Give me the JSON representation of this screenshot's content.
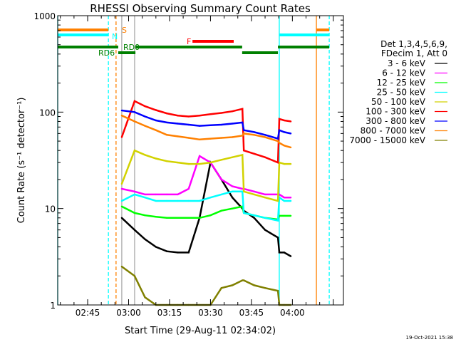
{
  "chart_data": {
    "type": "line",
    "title": "RHESSI Observing Summary Count Rates",
    "xlabel": "Start Time (29-Aug-11 02:34:02)",
    "ylabel": "Count Rate (s⁻¹ detector⁻¹)",
    "x_units": "minutes after 02:30 UT",
    "xlim": [
      4.03,
      108.7
    ],
    "ylim": [
      1,
      1000
    ],
    "yscale": "log",
    "x_ticks": [
      {
        "v": 15,
        "label": "02:45"
      },
      {
        "v": 30,
        "label": "03:00"
      },
      {
        "v": 45,
        "label": "03:15"
      },
      {
        "v": 60,
        "label": "03:30"
      },
      {
        "v": 75,
        "label": "03:45"
      },
      {
        "v": 90,
        "label": "04:00"
      }
    ],
    "y_ticks": [
      {
        "v": 1,
        "label": "1"
      },
      {
        "v": 10,
        "label": "10"
      },
      {
        "v": 100,
        "label": "100"
      },
      {
        "v": 1000,
        "label": "1000"
      }
    ],
    "legend_header": [
      "Det 1,3,4,5,6,9,",
      "FDecim 1, Att 0"
    ],
    "legend_position": "right",
    "x": [
      27.5,
      32.2,
      36,
      40,
      44,
      48,
      52,
      56,
      60,
      64,
      68,
      71.7,
      72.2,
      76,
      80,
      84.7,
      85.2,
      87,
      89.4
    ],
    "series": [
      {
        "name": "3 - 6 keV",
        "color": "#000000",
        "values": [
          8,
          6,
          4.8,
          4,
          3.6,
          3.5,
          3.5,
          8,
          30,
          20,
          13,
          10,
          9.5,
          8,
          6,
          5,
          3.5,
          3.5,
          3.2
        ]
      },
      {
        "name": "6 - 12 keV",
        "color": "#ff00ff",
        "values": [
          16,
          15,
          14,
          14,
          14,
          14,
          16,
          35,
          30,
          20,
          17,
          16,
          16,
          15,
          14,
          14,
          14,
          13,
          13
        ]
      },
      {
        "name": "12 - 25 keV",
        "color": "#00ff00",
        "values": [
          10.5,
          9,
          8.5,
          8.2,
          8,
          8,
          8,
          8,
          8.5,
          9.5,
          10,
          10.5,
          9,
          8.5,
          8,
          7.7,
          8.4,
          8.4,
          8.4
        ]
      },
      {
        "name": "25 - 50 keV",
        "color": "#00ffff",
        "values": [
          12,
          14,
          13,
          12,
          12,
          12,
          12,
          12,
          13,
          14,
          15,
          15,
          9,
          8.5,
          8,
          7.5,
          13,
          12,
          12
        ]
      },
      {
        "name": "50 - 100 keV",
        "color": "#d2d200",
        "values": [
          18,
          40,
          36,
          33,
          31,
          30,
          29,
          29,
          30,
          32,
          34,
          36,
          15,
          14,
          13,
          12,
          30,
          29,
          29
        ]
      },
      {
        "name": "100 - 300 keV",
        "color": "#ff0000",
        "values": [
          55,
          130,
          115,
          105,
          97,
          92,
          90,
          92,
          95,
          98,
          102,
          108,
          40,
          37,
          34,
          30,
          85,
          82,
          80
        ]
      },
      {
        "name": "300 - 800 keV",
        "color": "#0000ff",
        "values": [
          104,
          100,
          90,
          82,
          78,
          76,
          74,
          72,
          73,
          74,
          76,
          78,
          65,
          62,
          58,
          53,
          65,
          62,
          60
        ]
      },
      {
        "name": "800 - 7000 keV",
        "color": "#ff8000",
        "values": [
          92,
          80,
          72,
          65,
          58,
          56,
          54,
          52,
          53,
          54,
          55,
          57,
          60,
          58,
          55,
          50,
          48,
          45,
          43
        ]
      },
      {
        "name": "7000 - 15000 keV",
        "color": "#808000",
        "values": [
          2.5,
          2,
          1.2,
          1,
          1,
          1,
          1,
          1,
          1,
          1.5,
          1.6,
          1.8,
          1.8,
          1.6,
          1.5,
          1.4,
          1,
          1,
          1
        ]
      }
    ],
    "flags": [
      {
        "label": "S",
        "color": "#ff8000",
        "row": 0,
        "spans": [
          [
            4.03,
            22.6
          ],
          [
            98.8,
            103.5
          ]
        ]
      },
      {
        "label": "N",
        "color": "#00ffff",
        "row": 1,
        "spans": [
          [
            4.03,
            22.6
          ],
          [
            85.2,
            103.5
          ]
        ]
      },
      {
        "label": "F",
        "color": "#ff0000",
        "row": 2,
        "spans": [
          [
            53.4,
            68.5
          ]
        ]
      },
      {
        "label": "RD0",
        "color": "#008000",
        "row": 3,
        "spans": [
          [
            4.03,
            26.2
          ],
          [
            32.5,
            71.6
          ],
          [
            84.7,
            103.5
          ]
        ]
      },
      {
        "label": "RD6",
        "color": "#008000",
        "row": 4,
        "spans": [
          [
            26.2,
            32.5
          ],
          [
            71.6,
            84.7
          ]
        ]
      }
    ],
    "vlines": [
      {
        "t": 4.03,
        "color": "#00ffff",
        "dash": false
      },
      {
        "t": 22.6,
        "color": "#00ffff",
        "dash": true
      },
      {
        "t": 25.4,
        "color": "#ff8000",
        "dash": true
      },
      {
        "t": 27.5,
        "color": "#aaaaaa",
        "dash": false
      },
      {
        "t": 32.2,
        "color": "#aaaaaa",
        "dash": false
      },
      {
        "t": 85.2,
        "color": "#00ffff",
        "dash": false
      },
      {
        "t": 98.8,
        "color": "#ff8000",
        "dash": false
      },
      {
        "t": 103.5,
        "color": "#00ffff",
        "dash": true
      }
    ]
  },
  "footer": {
    "timestamp": "19-Oct-2021 15:38"
  }
}
